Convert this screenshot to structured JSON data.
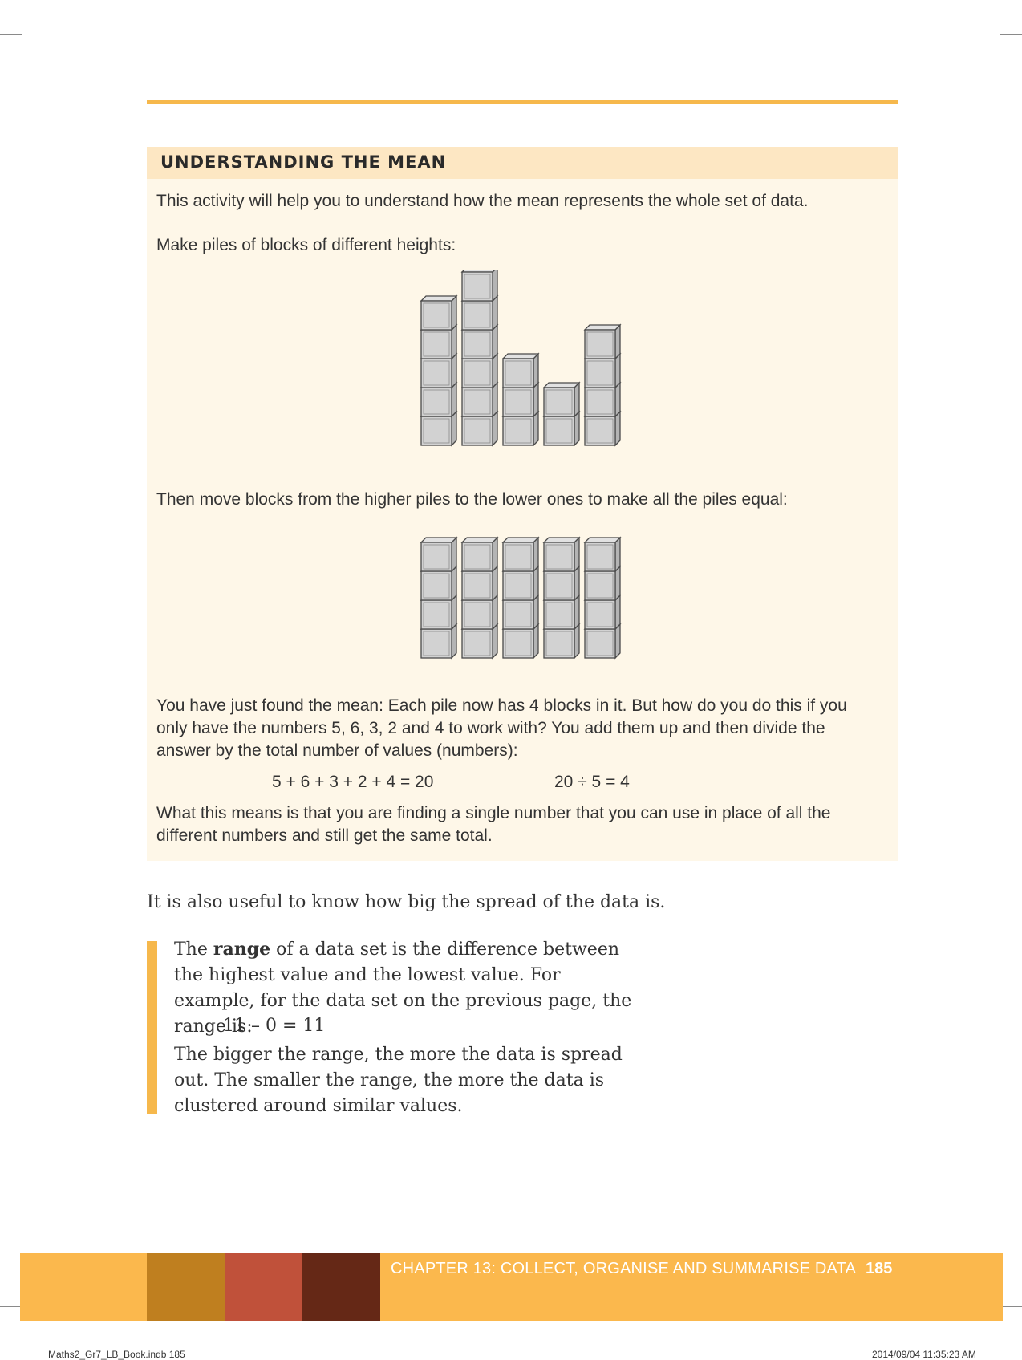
{
  "activity": {
    "title": "UNDERSTANDING THE MEAN",
    "intro": "This activity will help you to understand how the mean represents the whole set of data.",
    "step1": "Make piles of blocks of different heights:",
    "step2": "Then move blocks from the higher piles to the lower ones to make all the piles equal:",
    "explanation": "You have just found the mean: Each pile now has 4 blocks in it. But how do you do this if you only have the numbers 5, 6, 3, 2 and 4 to work with? You add them up and then divide the answer by the total number of values (numbers):",
    "equation_sum": "5 + 6 + 3 + 2 + 4 = 20",
    "equation_div": "20 ÷ 5 = 4",
    "conclusion": "What this means is that you are finding a single number that you can use in place of all the different numbers and still get the same total."
  },
  "piles_before": [
    5,
    6,
    3,
    2,
    4
  ],
  "piles_after": [
    4,
    4,
    4,
    4,
    4
  ],
  "spread_intro": "It is also useful to know how big the spread of the data is.",
  "range_box": {
    "pre": "The ",
    "term": "range",
    "post": " of a data set is the difference between the highest value and the lowest value. For example, for the data set on the previous page, the range is:",
    "example": "11 – 0 = 11",
    "closing": "The bigger the range, the more the data is spread out. The smaller the range, the more the data is clustered around similar values."
  },
  "footer": {
    "chapter": "CHAPTER 13: COLLECT, ORGANISE AND SUMMARISE DATA",
    "page_number": "185",
    "swatch_colors": [
      "#bf7f1f",
      "#c0513a",
      "#652816"
    ]
  },
  "slug": {
    "file": "Maths2_Gr7_LB_Book.indb   185",
    "timestamp": "2014/09/04   11:35:23 AM"
  }
}
